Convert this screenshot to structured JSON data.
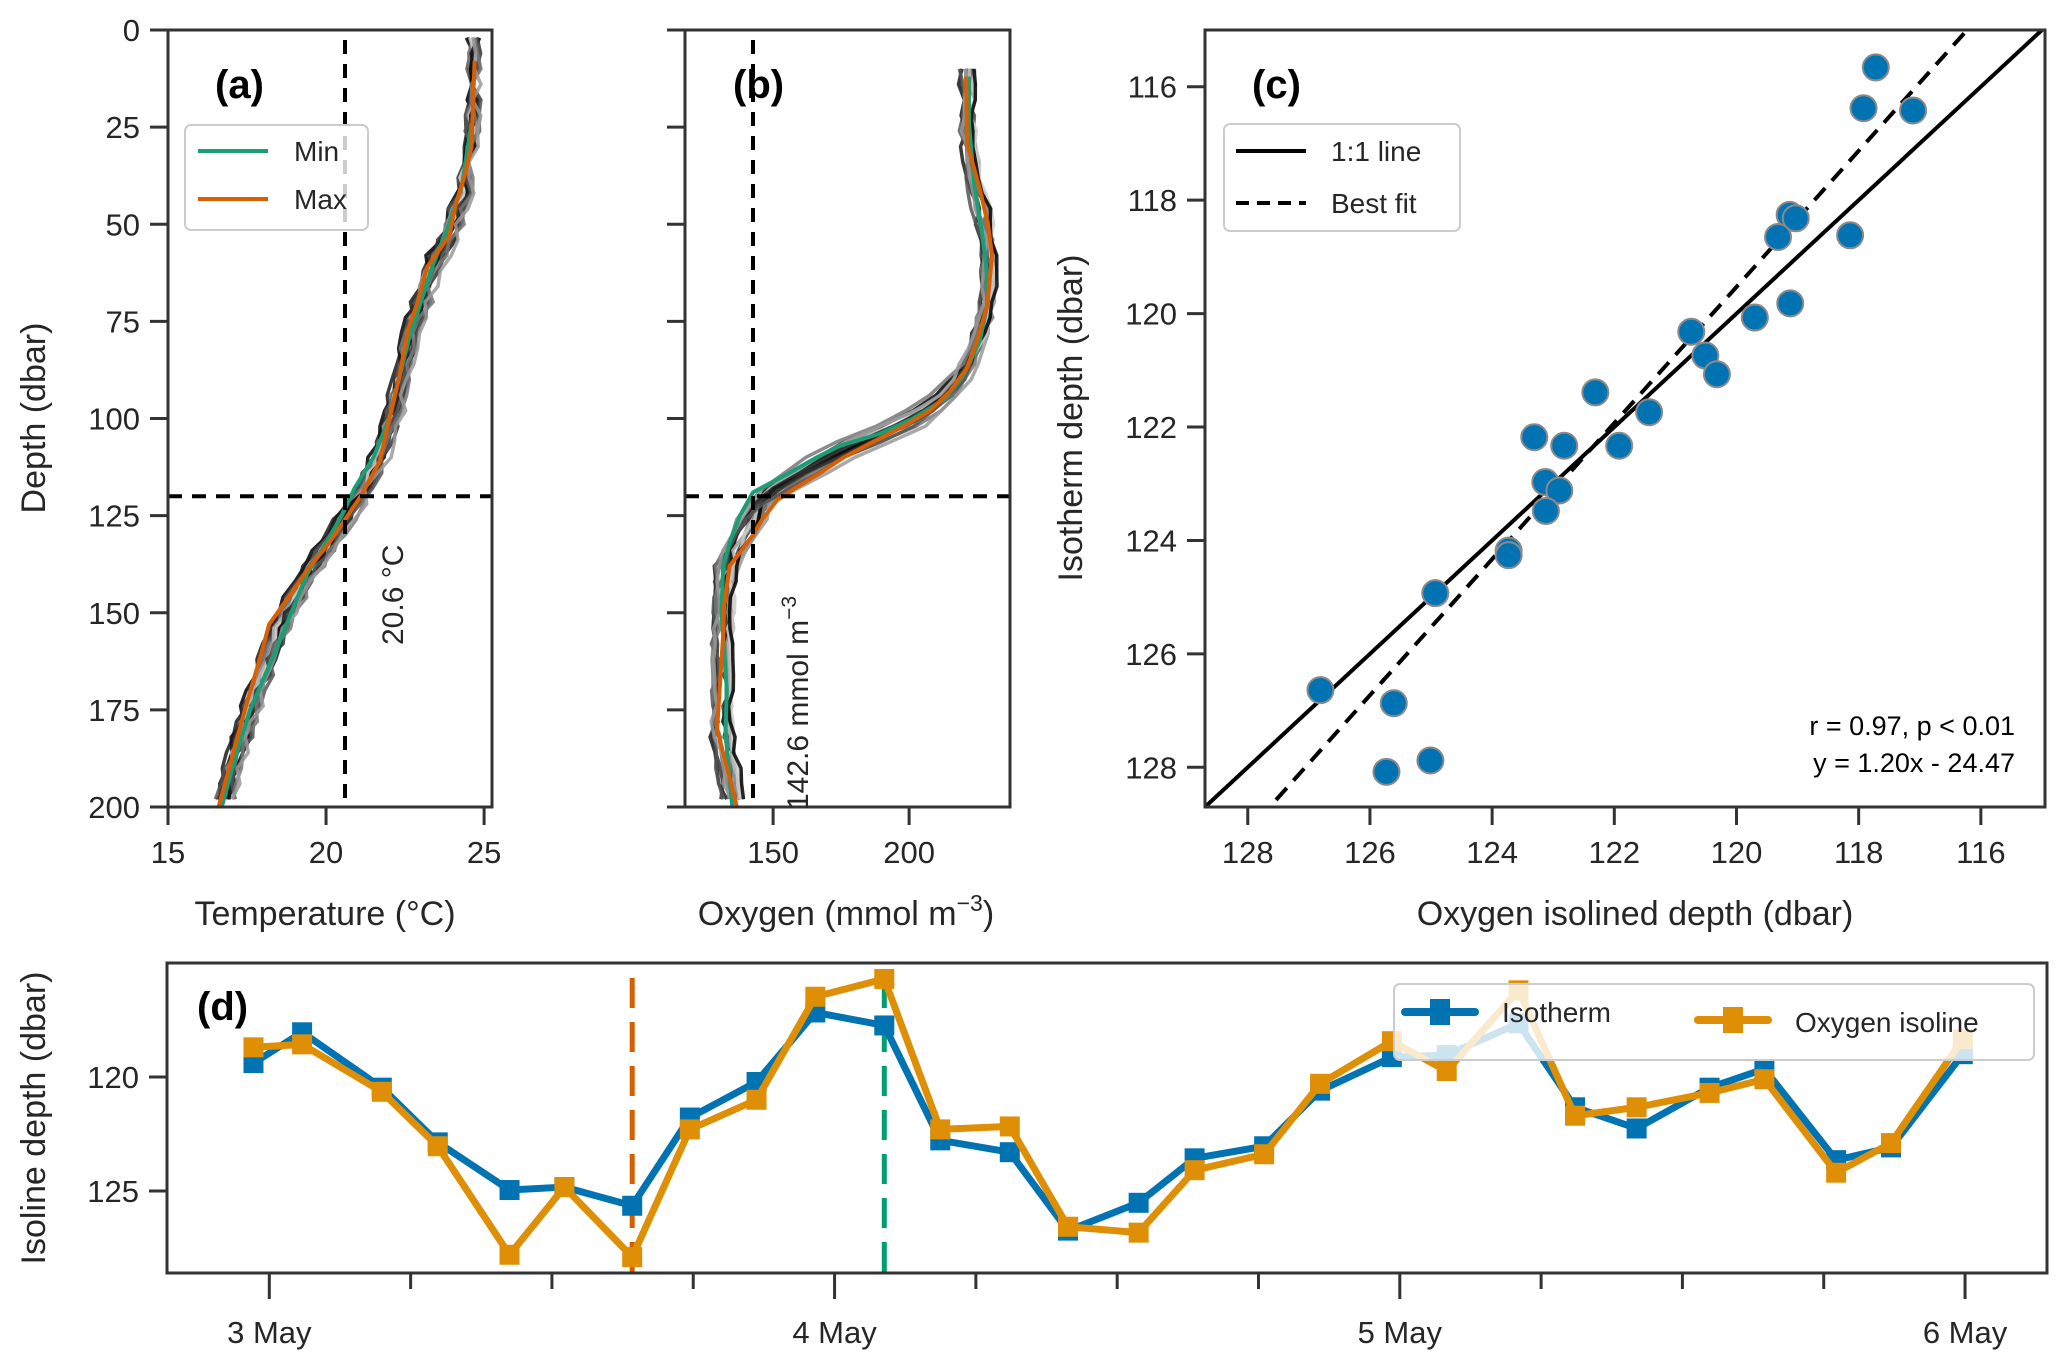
{
  "chart_data": [
    {
      "panel": "a",
      "type": "line",
      "panel_label": "(a)",
      "xlabel": "Temperature (°C)",
      "ylabel": "Depth (dbar)",
      "xlim": [
        15,
        25.25
      ],
      "ylim": [
        200,
        0
      ],
      "xticks": [
        15,
        20,
        25
      ],
      "yticks": [
        0,
        25,
        50,
        75,
        100,
        125,
        150,
        175,
        200
      ],
      "legend": {
        "position": "upper-left",
        "entries": [
          "Min",
          "Max"
        ]
      },
      "reference_lines": {
        "x": 20.6,
        "y": 120
      },
      "annotation": "20.6 °C",
      "colors": {
        "min": "#1b9e77",
        "max": "#d95f02",
        "ensemble": "#000000",
        "reference": "#000000"
      },
      "series": [
        {
          "name": "Min",
          "depth": [
            24,
            40,
            52,
            60,
            70,
            80,
            90,
            100,
            110,
            118,
            125,
            132,
            140,
            150,
            160,
            175,
            188,
            200
          ],
          "values": [
            24.6,
            24.3,
            23.8,
            23.4,
            23.0,
            22.6,
            22.3,
            22.0,
            21.5,
            20.9,
            20.5,
            20.0,
            19.4,
            18.9,
            18.4,
            17.6,
            17.1,
            16.7
          ]
        },
        {
          "name": "Max",
          "depth": [
            8,
            30,
            37,
            45,
            53,
            61,
            70,
            77,
            90,
            100,
            111,
            120,
            126,
            132,
            138,
            145,
            153,
            162,
            173,
            188,
            200
          ],
          "values": [
            24.7,
            24.6,
            24.4,
            24.1,
            23.9,
            23.2,
            22.9,
            22.6,
            22.3,
            22.0,
            21.7,
            21.1,
            20.6,
            20.1,
            19.5,
            18.9,
            18.2,
            17.9,
            17.5,
            17.0,
            16.6
          ]
        }
      ]
    },
    {
      "panel": "b",
      "type": "line",
      "panel_label": "(b)",
      "xlabel": "Oxygen (mmol m",
      "xlabel_sup": "−3",
      "xlabel_end": ")",
      "ylabel": "",
      "xlim": [
        117.6,
        237.1
      ],
      "ylim": [
        200,
        0
      ],
      "xticks": [
        150,
        200
      ],
      "yticks": [
        0,
        25,
        50,
        75,
        100,
        125,
        150,
        175,
        200
      ],
      "reference_lines": {
        "x": 142.6,
        "y": 120
      },
      "annotation": "142.6 mmol m",
      "annotation_sup": "−3",
      "series": [
        {
          "name": "Min",
          "depth": [
            12,
            24,
            40,
            52,
            62,
            71,
            80,
            89,
            95,
            100,
            104,
            107,
            110,
            114,
            119,
            125,
            132,
            138,
            150,
            160,
            170,
            180,
            189,
            200
          ],
          "values": [
            222,
            222,
            224,
            226.8,
            228.5,
            228.7,
            226,
            220,
            213,
            201.5,
            189,
            174.6,
            166,
            156,
            142.6,
            137.8,
            134,
            131.6,
            131,
            132,
            133,
            132.5,
            133.5,
            135
          ]
        },
        {
          "name": "Max",
          "depth": [
            12,
            29,
            41,
            50,
            58,
            71,
            80,
            87,
            93,
            98,
            102,
            106,
            110,
            114,
            118,
            121,
            126,
            130,
            138,
            148,
            156,
            168,
            180,
            186,
            200
          ],
          "values": [
            221,
            221.3,
            226,
            229,
            230.5,
            228.7,
            225,
            221.3,
            215,
            207.7,
            198,
            186.8,
            176,
            167.3,
            158,
            151.5,
            146,
            142.6,
            134,
            132,
            131.6,
            130.5,
            129.4,
            131.6,
            136.7
          ]
        }
      ]
    },
    {
      "panel": "c",
      "type": "scatter",
      "panel_label": "(c)",
      "xlabel": "Oxygen isolined depth (dbar)",
      "ylabel": "Isotherm depth (dbar)",
      "xlim": [
        128.7,
        114.95
      ],
      "ylim": [
        115.0,
        128.7
      ],
      "xticks": [
        128,
        126,
        124,
        122,
        120,
        118,
        116
      ],
      "yticks": [
        116,
        118,
        120,
        122,
        124,
        126,
        128
      ],
      "legend": {
        "position": "upper-left",
        "entries": [
          "1:1 line",
          "Best fit"
        ]
      },
      "stats": [
        "r = 0.97, p < 0.01",
        "y = 1.20x - 24.47"
      ],
      "fit": {
        "slope": 1.2,
        "intercept": -24.47
      },
      "point_color": "#0173b2",
      "points": [
        [
          117.72,
          115.66
        ],
        [
          117.92,
          116.38
        ],
        [
          117.11,
          116.42
        ],
        [
          119.13,
          118.26
        ],
        [
          119.03,
          118.32
        ],
        [
          119.32,
          118.65
        ],
        [
          118.14,
          118.62
        ],
        [
          119.12,
          119.82
        ],
        [
          119.7,
          120.07
        ],
        [
          120.74,
          120.32
        ],
        [
          120.51,
          120.74
        ],
        [
          120.32,
          121.07
        ],
        [
          122.31,
          121.39
        ],
        [
          121.43,
          121.74
        ],
        [
          123.31,
          122.18
        ],
        [
          122.82,
          122.33
        ],
        [
          121.92,
          122.33
        ],
        [
          123.13,
          122.97
        ],
        [
          122.9,
          123.12
        ],
        [
          123.12,
          123.48
        ],
        [
          123.73,
          124.18
        ],
        [
          123.73,
          124.26
        ],
        [
          124.93,
          124.93
        ],
        [
          126.81,
          126.64
        ],
        [
          125.61,
          126.87
        ],
        [
          125.01,
          127.88
        ],
        [
          125.73,
          128.08
        ]
      ]
    },
    {
      "panel": "d",
      "type": "line",
      "panel_label": "(d)",
      "xlabel": "",
      "ylabel": "Isoline depth (dbar)",
      "xlim_days": [
        -0.181,
        3.145
      ],
      "ylim": [
        128.6,
        115.0
      ],
      "yticks": [
        120,
        125
      ],
      "xticks_days": [
        0,
        0.25,
        0.5,
        0.75,
        1,
        1.25,
        1.5,
        1.75,
        2,
        2.25,
        2.5,
        2.75,
        3
      ],
      "xtick_labels": [
        {
          "day": 0,
          "label": "3 May"
        },
        {
          "day": 1,
          "label": "4 May"
        },
        {
          "day": 2,
          "label": "5 May"
        },
        {
          "day": 3,
          "label": "6 May"
        }
      ],
      "x_units": "days since 3 May 00:00",
      "vlines": [
        {
          "day": 0.642,
          "color": "#d55e00"
        },
        {
          "day": 1.088,
          "color": "#029e73"
        }
      ],
      "legend": {
        "position": "upper-right",
        "entries": [
          "Isotherm",
          "Oxygen isoline"
        ]
      },
      "x": [
        -0.028,
        0.058,
        0.199,
        0.298,
        0.425,
        0.522,
        0.642,
        0.744,
        0.862,
        0.966,
        1.088,
        1.187,
        1.31,
        1.413,
        1.538,
        1.637,
        1.76,
        1.859,
        1.986,
        2.083,
        2.21,
        2.31,
        2.419,
        2.548,
        2.645,
        2.772,
        2.869,
        2.996
      ],
      "series": [
        {
          "name": "Isotherm",
          "color": "#0173b2",
          "values": [
            119.39,
            118.04,
            120.47,
            122.87,
            124.96,
            124.83,
            125.65,
            121.78,
            120.22,
            117.17,
            117.74,
            122.78,
            123.3,
            126.74,
            125.52,
            123.57,
            123.04,
            120.6,
            119.13,
            119.04,
            117.65,
            121.33,
            122.26,
            120.47,
            119.65,
            123.65,
            123.09,
            119.0
          ]
        },
        {
          "name": "Oxygen isoline",
          "color": "#de8f05",
          "values": [
            118.7,
            118.57,
            120.65,
            123.04,
            127.8,
            124.83,
            127.9,
            122.3,
            121.0,
            116.48,
            115.7,
            122.3,
            122.17,
            126.57,
            126.83,
            124.09,
            123.39,
            120.3,
            118.43,
            119.74,
            116.2,
            121.7,
            121.33,
            120.7,
            120.1,
            124.2,
            122.9,
            118.35
          ]
        }
      ]
    }
  ]
}
